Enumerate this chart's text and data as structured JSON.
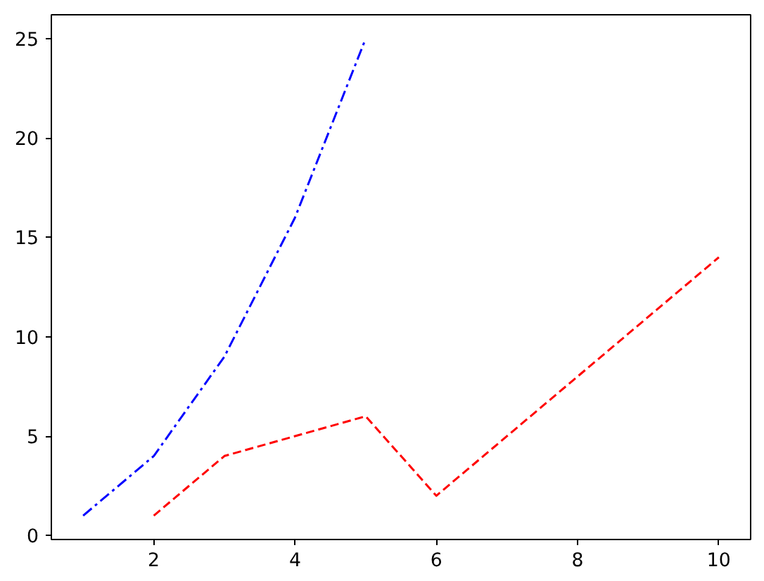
{
  "chart_data": {
    "type": "line",
    "series": [
      {
        "color": "#0000ff",
        "line_style": "dashdot",
        "x": [
          1,
          2,
          3,
          4,
          5
        ],
        "values": [
          1,
          4,
          9,
          16,
          25
        ]
      },
      {
        "color": "#ff0000",
        "line_style": "dashed",
        "x": [
          2,
          3,
          4,
          5,
          6,
          10
        ],
        "values": [
          1,
          4,
          5,
          6,
          2,
          14
        ]
      }
    ],
    "xlim": [
      0.55,
      10.45
    ],
    "ylim": [
      -0.2,
      26.2
    ],
    "xticks": [
      2,
      4,
      6,
      8,
      10
    ],
    "yticks": [
      0,
      5,
      10,
      15,
      20,
      25
    ],
    "grid": false,
    "marker": "none"
  }
}
